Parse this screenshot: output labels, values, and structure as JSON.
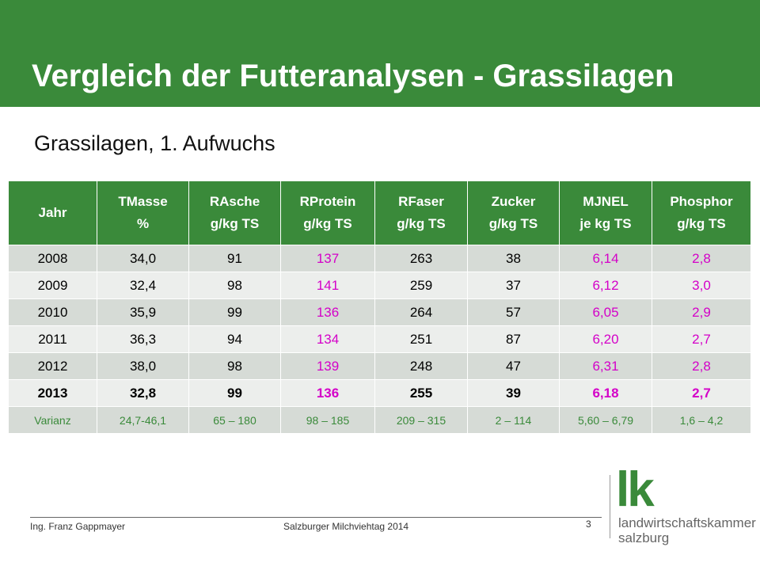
{
  "slide": {
    "title": "Vergleich der Futteranalysen - Grassilagen",
    "subtitle": "Grassilagen, 1. Aufwuchs"
  },
  "table": {
    "headers": [
      [
        "Jahr"
      ],
      [
        "TMasse",
        "%"
      ],
      [
        "RAsche",
        "g/kg TS"
      ],
      [
        "RProtein",
        "g/kg TS"
      ],
      [
        "RFaser",
        "g/kg TS"
      ],
      [
        "Zucker",
        "g/kg TS"
      ],
      [
        "MJNEL",
        "je kg TS"
      ],
      [
        "Phosphor",
        "g/kg TS"
      ]
    ],
    "rows": [
      [
        "2008",
        "34,0",
        "91",
        "137",
        "263",
        "38",
        "6,14",
        "2,8"
      ],
      [
        "2009",
        "32,4",
        "98",
        "141",
        "259",
        "37",
        "6,12",
        "3,0"
      ],
      [
        "2010",
        "35,9",
        "99",
        "136",
        "264",
        "57",
        "6,05",
        "2,9"
      ],
      [
        "2011",
        "36,3",
        "94",
        "134",
        "251",
        "87",
        "6,20",
        "2,7"
      ],
      [
        "2012",
        "38,0",
        "98",
        "139",
        "248",
        "47",
        "6,31",
        "2,8"
      ],
      [
        "2013",
        "32,8",
        "99",
        "136",
        "255",
        "39",
        "6,18",
        "2,7"
      ],
      [
        "Varianz",
        "24,7-46,1",
        "65 – 180",
        "98 – 185",
        "209 – 315",
        "2 – 114",
        "5,60 – 6,79",
        "1,6 – 4,2"
      ]
    ]
  },
  "footer": {
    "author": "Ing. Franz Gappmayer",
    "event": "Salzburger Milchviehtag 2014",
    "page": "3"
  },
  "logo": {
    "mark": "lk",
    "line1": "landwirtschaftskammer",
    "line2": "salzburg"
  },
  "colors": {
    "brand_green": "#3a8a3a",
    "highlight_magenta": "#d400c8",
    "row_dark": "#d6dbd6",
    "row_light": "#eceeec"
  }
}
